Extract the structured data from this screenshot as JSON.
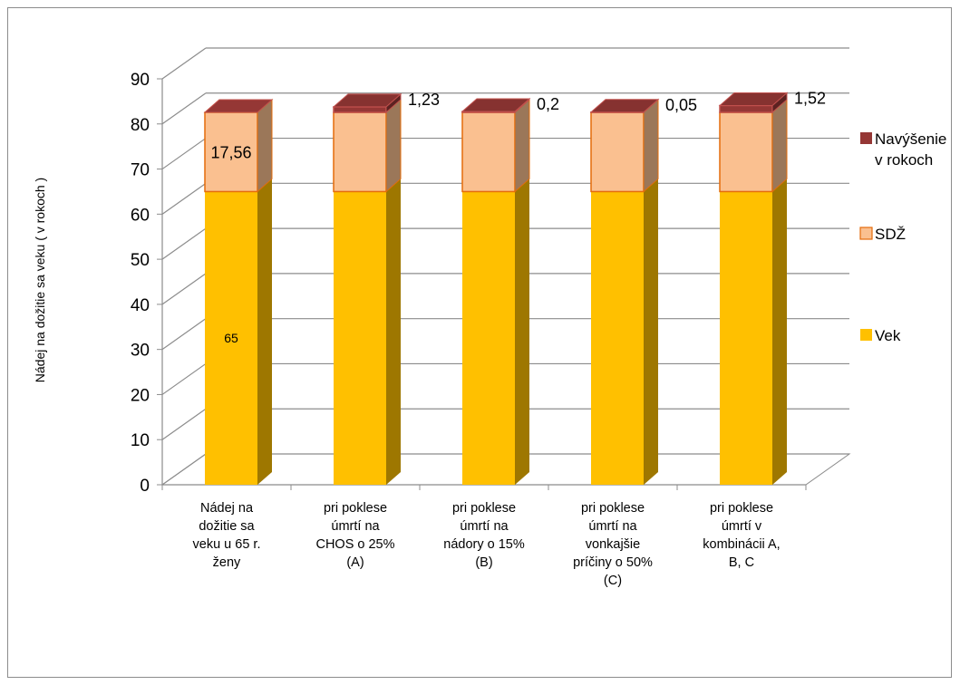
{
  "chart_data": {
    "type": "bar",
    "stacked": true,
    "three_d": true,
    "title": "",
    "xlabel": "",
    "ylabel": "Nádej na dožitie sa veku ( v rokoch )",
    "ylim": [
      0,
      90
    ],
    "yticks": [
      "0",
      "10",
      "20",
      "30",
      "40",
      "50",
      "60",
      "70",
      "80",
      "90"
    ],
    "grid": true,
    "legend_position": "right",
    "categories": [
      [
        "Nádej na",
        "dožitie sa",
        "veku u  65 r.",
        "ženy"
      ],
      [
        "pri poklese",
        "úmrtí na",
        "CHOS o 25%",
        "(A)"
      ],
      [
        "pri poklese",
        "úmrtí na",
        "nádory o 15%",
        "(B)"
      ],
      [
        "pri poklese",
        "úmrtí na",
        "vonkajšie",
        "príčiny o 50%",
        "(C)"
      ],
      [
        "pri poklese",
        "úmrtí v",
        "kombinácii A,",
        "B, C"
      ]
    ],
    "series": [
      {
        "name": "Vek",
        "values": [
          65,
          65,
          65,
          65,
          65
        ],
        "color": "#ffc000"
      },
      {
        "name": "SDŽ",
        "values": [
          17.56,
          17.56,
          17.56,
          17.56,
          17.56
        ],
        "color": "#fac090"
      },
      {
        "name": "Navýšenie v rokoch",
        "values": [
          0,
          1.23,
          0.2,
          0.05,
          1.52
        ],
        "color": "#953735"
      }
    ],
    "data_labels": [
      {
        "category": 0,
        "series": "Vek",
        "text": "65"
      },
      {
        "category": 0,
        "series": "SDŽ",
        "text": "17,56"
      },
      {
        "category": 1,
        "series": "Navýšenie v rokoch",
        "text": "1,23"
      },
      {
        "category": 2,
        "series": "Navýšenie v rokoch",
        "text": "0,2"
      },
      {
        "category": 3,
        "series": "Navýšenie v rokoch",
        "text": "0,05"
      },
      {
        "category": 4,
        "series": "Navýšenie v rokoch",
        "text": "1,52"
      }
    ],
    "legend": [
      {
        "lines": [
          "Navýšenie",
          "v rokoch"
        ],
        "color": "#953735"
      },
      {
        "lines": [
          "SDŽ"
        ],
        "color": "#fac090"
      },
      {
        "lines": [
          "Vek"
        ],
        "color": "#ffc000"
      }
    ]
  }
}
